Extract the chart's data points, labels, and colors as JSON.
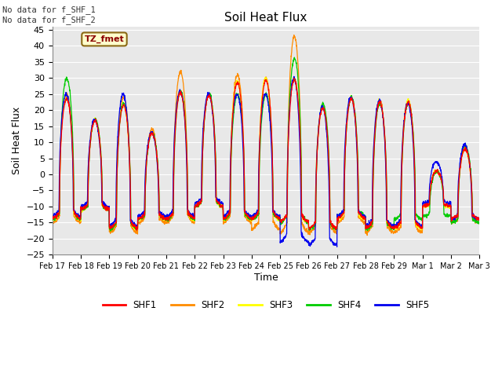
{
  "title": "Soil Heat Flux",
  "ylabel": "Soil Heat Flux",
  "xlabel": "Time",
  "ylim": [
    -25,
    46
  ],
  "yticks": [
    -25,
    -20,
    -15,
    -10,
    -5,
    0,
    5,
    10,
    15,
    20,
    25,
    30,
    35,
    40,
    45
  ],
  "xtick_labels": [
    "Feb 17",
    "Feb 18",
    "Feb 19",
    "Feb 20",
    "Feb 21",
    "Feb 22",
    "Feb 23",
    "Feb 24",
    "Feb 25",
    "Feb 26",
    "Feb 27",
    "Feb 28",
    "Feb 29",
    "Mar 1",
    "Mar 2",
    "Mar 3"
  ],
  "annotation_text": "No data for f_SHF_1\nNo data for f_SHF_2",
  "legend_label_box": "TZ_fmet",
  "line_colors": {
    "SHF1": "#ff0000",
    "SHF2": "#ff8c00",
    "SHF3": "#ffff00",
    "SHF4": "#00cc00",
    "SHF5": "#0000ee"
  },
  "legend_entries": [
    {
      "label": "SHF1",
      "color": "#ff0000"
    },
    {
      "label": "SHF2",
      "color": "#ff8c00"
    },
    {
      "label": "SHF3",
      "color": "#ffff00"
    },
    {
      "label": "SHF4",
      "color": "#00cc00"
    },
    {
      "label": "SHF5",
      "color": "#0000ee"
    }
  ],
  "bg_color": "#e8e8e8",
  "grid_color": "#ffffff",
  "fig_bg_color": "#ffffff",
  "day_peaks_shf2": [
    25,
    17,
    24,
    14,
    32,
    25,
    31,
    30,
    43,
    21,
    24,
    23,
    23,
    1,
    8
  ],
  "day_troughs_shf2": [
    -15,
    -11,
    -18,
    -15,
    -15,
    -10,
    -15,
    -17,
    -18,
    -18,
    -15,
    -18,
    -18,
    -10,
    -15
  ],
  "day_peaks_shf3": [
    24,
    17,
    22,
    13,
    26,
    25,
    29,
    30,
    30,
    21,
    24,
    23,
    23,
    1,
    8
  ],
  "day_troughs_shf3": [
    -14,
    -11,
    -17,
    -14,
    -14,
    -10,
    -14,
    -14,
    -15,
    -17,
    -14,
    -17,
    -17,
    -10,
    -14
  ],
  "day_peaks_shf4": [
    30,
    17,
    22,
    13,
    26,
    25,
    25,
    25,
    36,
    22,
    24,
    22,
    22,
    1,
    9
  ],
  "day_troughs_shf4": [
    -14,
    -11,
    -17,
    -14,
    -14,
    -10,
    -14,
    -14,
    -15,
    -17,
    -13,
    -17,
    -14,
    -13,
    -15
  ],
  "day_peaks_shf5": [
    25,
    17,
    25,
    13,
    26,
    25,
    25,
    25,
    30,
    21,
    24,
    23,
    22,
    4,
    9
  ],
  "day_troughs_shf5": [
    -13,
    -10,
    -16,
    -13,
    -13,
    -9,
    -13,
    -13,
    -21,
    -22,
    -13,
    -16,
    -16,
    -9,
    -14
  ],
  "night_floor": -14,
  "pts_per_day": 144
}
